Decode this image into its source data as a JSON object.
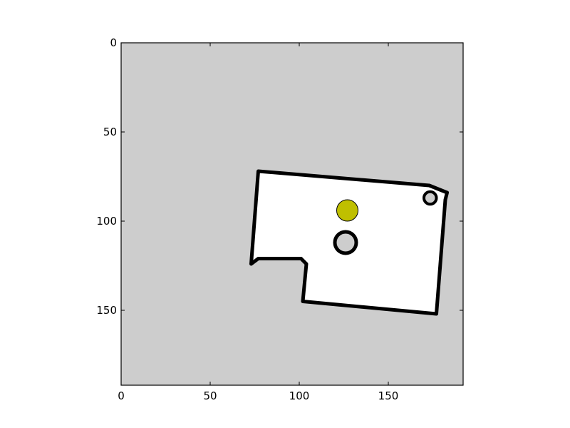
{
  "chart_data": {
    "type": "occupancy-grid-map",
    "title": "",
    "xlabel": "",
    "ylabel": "",
    "xlim": [
      0,
      192
    ],
    "ylim": [
      192,
      0
    ],
    "y_axis_inverted": true,
    "x_ticks": [
      0,
      50,
      100,
      150
    ],
    "x_tick_labels": [
      "0",
      "50",
      "100",
      "150"
    ],
    "y_ticks": [
      0,
      50,
      100,
      150
    ],
    "y_tick_labels": [
      "0",
      "50",
      "100",
      "150"
    ],
    "grid": false,
    "colors": {
      "unknown": "#cdcdcd",
      "free": "#ffffff",
      "occupied": "#000000",
      "robot": "#bfbf00"
    },
    "free_region_polygon": [
      [
        77,
        72
      ],
      [
        173,
        80
      ],
      [
        183,
        84
      ],
      [
        182,
        88
      ],
      [
        177,
        152
      ],
      [
        102,
        145
      ],
      [
        104,
        124
      ],
      [
        101,
        121
      ],
      [
        77,
        121
      ],
      [
        73,
        124
      ]
    ],
    "obstacles": [
      {
        "label": "round obstacle",
        "center": [
          126,
          112
        ],
        "radius": 6
      },
      {
        "label": "corner obstacle",
        "center": [
          173.5,
          87
        ],
        "radius": 3.5
      }
    ],
    "robot": {
      "center": [
        127,
        94
      ],
      "radius": 6
    }
  }
}
